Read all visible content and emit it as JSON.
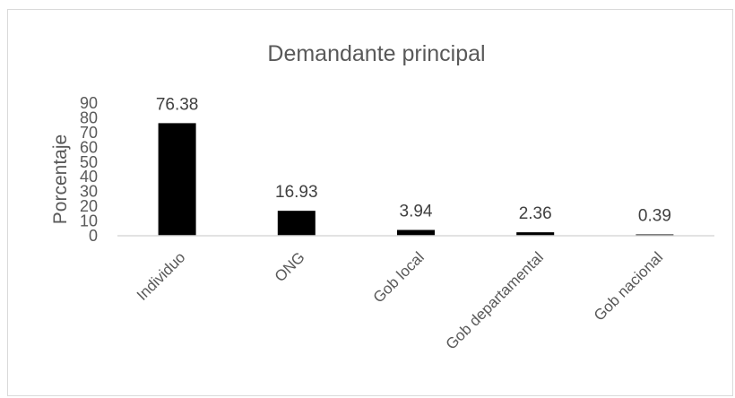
{
  "chart_data": {
    "type": "bar",
    "title": "Demandante principal",
    "xlabel": "",
    "ylabel": "Porcentaje",
    "categories": [
      "Individuo",
      "ONG",
      "Gob local",
      "Gob departamental",
      "Gob nacional"
    ],
    "values": [
      76.38,
      16.93,
      3.94,
      2.36,
      0.39
    ],
    "data_labels": [
      "76.38",
      "16.93",
      "3.94",
      "2.36",
      "0.39"
    ],
    "ylim": [
      0,
      90
    ],
    "yticks": [
      "0",
      "10",
      "20",
      "30",
      "40",
      "50",
      "60",
      "70",
      "80",
      "90"
    ],
    "grid": false,
    "legend": "none",
    "colors": {
      "bar": "#000000",
      "axis": "#d9d9d9",
      "text": "#595959",
      "data_label": "#404040",
      "border": "#d9d9d9"
    }
  }
}
